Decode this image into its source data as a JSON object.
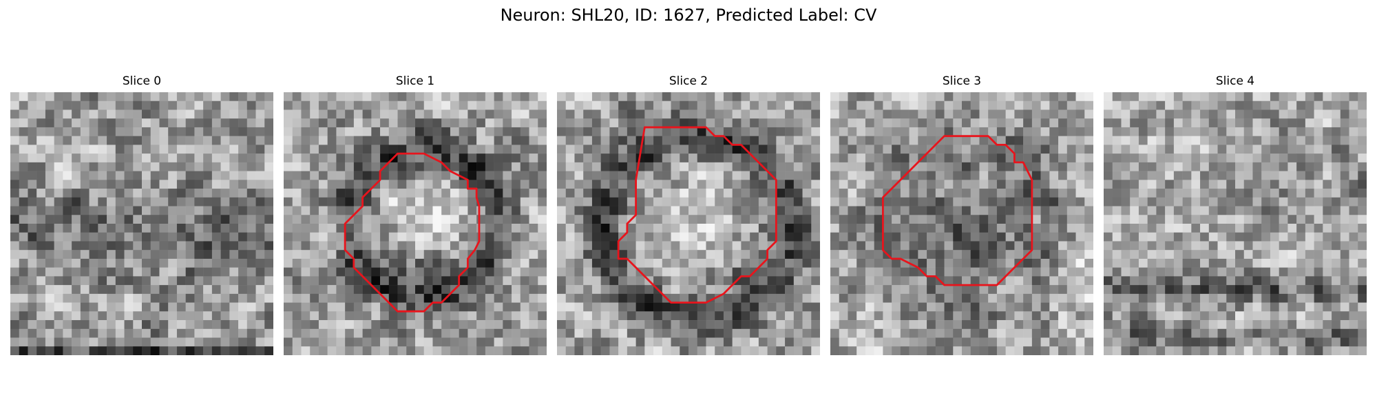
{
  "figure": {
    "title": "Neuron: SHL20, ID: 1627, Predicted Label: CV"
  },
  "panels": [
    {
      "title": "Slice 0",
      "has_contour": false
    },
    {
      "title": "Slice 1",
      "has_contour": true
    },
    {
      "title": "Slice 2",
      "has_contour": true
    },
    {
      "title": "Slice 3",
      "has_contour": true
    },
    {
      "title": "Slice 4",
      "has_contour": false
    }
  ],
  "colors": {
    "contour": "#e8141c"
  }
}
